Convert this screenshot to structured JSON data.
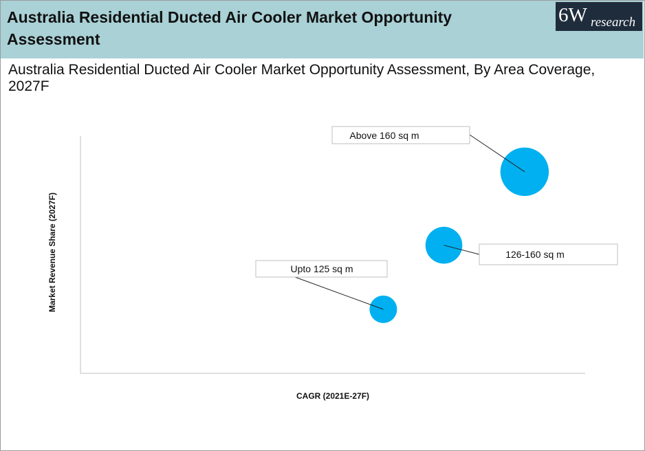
{
  "header": {
    "title": "Australia Residential Ducted Air Cooler Market Opportunity Assessment",
    "logo_main": "6W",
    "logo_sub": "research",
    "background_color": "#a9d1d6"
  },
  "chart_data": {
    "type": "scatter",
    "title": "Australia Residential Ducted Air Cooler Market Opportunity Assessment,  By Area Coverage, 2027F",
    "xlabel": "CAGR (2021E-27F)",
    "ylabel": "Market Revenue Share (2027F)",
    "xlim": [
      0,
      100
    ],
    "ylim": [
      0,
      100
    ],
    "grid": false,
    "bubble_color": "#00b0f0",
    "points": [
      {
        "name": "Upto 125 sq m",
        "x": 60,
        "y": 27,
        "size": 1.0
      },
      {
        "name": "126-160 sq m",
        "x": 72,
        "y": 54,
        "size": 1.8
      },
      {
        "name": "Above 160 sq m",
        "x": 88,
        "y": 85,
        "size": 3.1
      }
    ]
  }
}
